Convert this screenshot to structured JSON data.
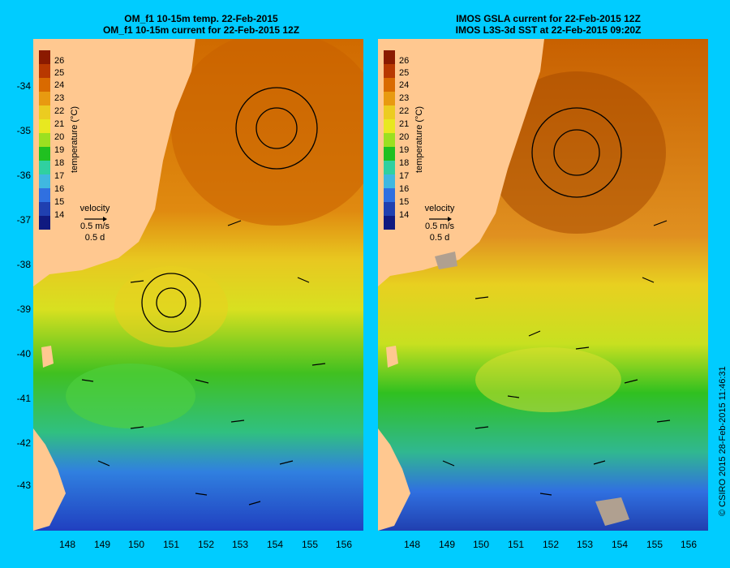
{
  "left_panel": {
    "title_line1": "OM_f1 10-15m temp. 22-Feb-2015",
    "title_line2": "OM_f1 10-15m current for 22-Feb-2015 12Z"
  },
  "right_panel": {
    "title_line1": "IMOS GSLA current for 22-Feb-2015 12Z",
    "title_line2": "IMOS L3S-3d SST at 22-Feb-2015 09:20Z"
  },
  "y_axis_labels": [
    "-34",
    "-35",
    "-36",
    "-37",
    "-38",
    "-39",
    "-40",
    "-41",
    "-42",
    "-43"
  ],
  "x_axis_labels": [
    "148",
    "149",
    "150",
    "151",
    "152",
    "153",
    "154",
    "155",
    "156"
  ],
  "colorbar": {
    "title": "temperature (°C)",
    "ticks": [
      "26",
      "25",
      "24",
      "23",
      "22",
      "21",
      "20",
      "19",
      "18",
      "17",
      "16",
      "15",
      "14"
    ],
    "colors": [
      "#8b1a00",
      "#b83800",
      "#d96a00",
      "#e89a10",
      "#eccc20",
      "#e8e820",
      "#9ce020",
      "#20c020",
      "#30d0a0",
      "#40b8e0",
      "#3070e0",
      "#2040b0",
      "#101a80"
    ]
  },
  "legend": {
    "title": "velocity",
    "speed": "0.5 m/s",
    "time": "0.5 d"
  },
  "credit": "© CSIRO 2015   28-Feb-2015 11:46:31",
  "colors": {
    "background": "#00ccff",
    "land": "#ffc890",
    "land_grey": "#b0a090"
  }
}
